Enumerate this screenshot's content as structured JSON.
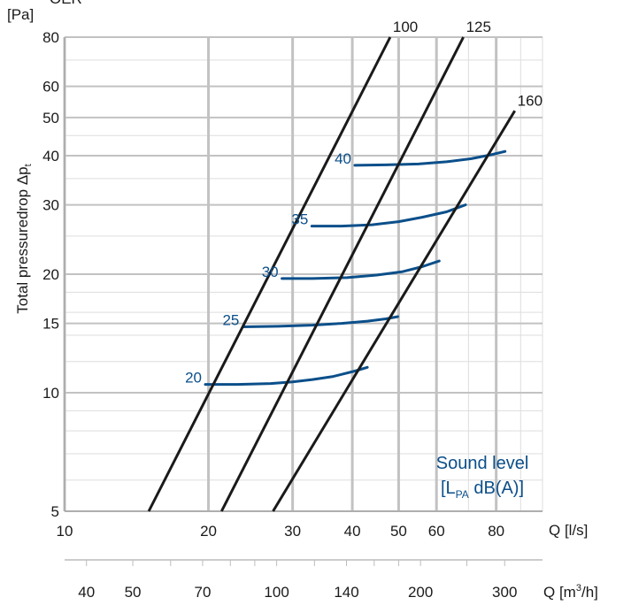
{
  "chart_data": {
    "type": "line",
    "title": "OER",
    "ylabel": "Total pressuredrop Δp",
    "ylabel_sub": "t",
    "yunit": "[Pa]",
    "xunit": "Q [l/s]",
    "x2unit_prefix": "Q [m",
    "x2unit_sup": "3",
    "x2unit_suffix": "/h]",
    "xscale": "log",
    "yscale": "log",
    "xlim": [
      10,
      100
    ],
    "ylim": [
      5,
      80
    ],
    "x2lim_m3h": [
      36,
      360
    ],
    "grid": true,
    "x_ticks": [
      "10",
      "20",
      "30",
      "40",
      "50",
      "60",
      "80"
    ],
    "x_tick_values": [
      10,
      20,
      30,
      40,
      50,
      60,
      80
    ],
    "x2_ticks": [
      "40",
      "50",
      "70",
      "100",
      "140",
      "200",
      "300"
    ],
    "x2_tick_values": [
      40,
      50,
      70,
      100,
      140,
      200,
      300
    ],
    "y_ticks": [
      "5",
      "10",
      "15",
      "20",
      "30",
      "40",
      "50",
      "60",
      "80"
    ],
    "y_tick_values": [
      5,
      10,
      15,
      20,
      30,
      40,
      50,
      60,
      80
    ],
    "series": [
      {
        "name": "100",
        "color": "#1a1a1a",
        "x": [
          15.0,
          48.0
        ],
        "y": [
          5.0,
          80.0
        ]
      },
      {
        "name": "125",
        "color": "#1a1a1a",
        "x": [
          21.3,
          68.3
        ],
        "y": [
          5.0,
          80.0
        ]
      },
      {
        "name": "160",
        "color": "#1a1a1a",
        "x": [
          27.3,
          87.5
        ],
        "y": [
          5.0,
          52.0
        ]
      }
    ],
    "sound_level_curves": [
      {
        "label": "20",
        "x": [
          19.7,
          23.0,
          27.0,
          30.0,
          33.0,
          36.5,
          40.5,
          43.0
        ],
        "y": [
          10.5,
          10.5,
          10.55,
          10.65,
          10.8,
          11.0,
          11.35,
          11.6
        ]
      },
      {
        "label": "25",
        "x": [
          23.6,
          28.0,
          33.0,
          38.0,
          43.0,
          47.0,
          49.8
        ],
        "y": [
          14.7,
          14.75,
          14.85,
          15.0,
          15.2,
          15.4,
          15.6
        ]
      },
      {
        "label": "30",
        "x": [
          28.5,
          33.0,
          39.0,
          45.0,
          51.0,
          56.0,
          60.8
        ],
        "y": [
          19.5,
          19.5,
          19.6,
          19.9,
          20.3,
          20.9,
          21.6
        ]
      },
      {
        "label": "35",
        "x": [
          32.9,
          38.0,
          44.0,
          50.0,
          56.0,
          63.0,
          69.0
        ],
        "y": [
          26.5,
          26.5,
          26.7,
          27.2,
          27.9,
          28.8,
          30.0
        ]
      },
      {
        "label": "40",
        "x": [
          40.5,
          47.0,
          55.0,
          63.0,
          71.0,
          78.0,
          83.5
        ],
        "y": [
          37.8,
          37.9,
          38.1,
          38.6,
          39.3,
          40.2,
          41.0
        ]
      }
    ],
    "annotation": {
      "line1": "Sound level",
      "line2_prefix": "[L",
      "line2_sub": "PA",
      "line2_suffix": " dB(A)]",
      "color": "#0b4f8a"
    },
    "curve_color": "#0b4f8a"
  }
}
